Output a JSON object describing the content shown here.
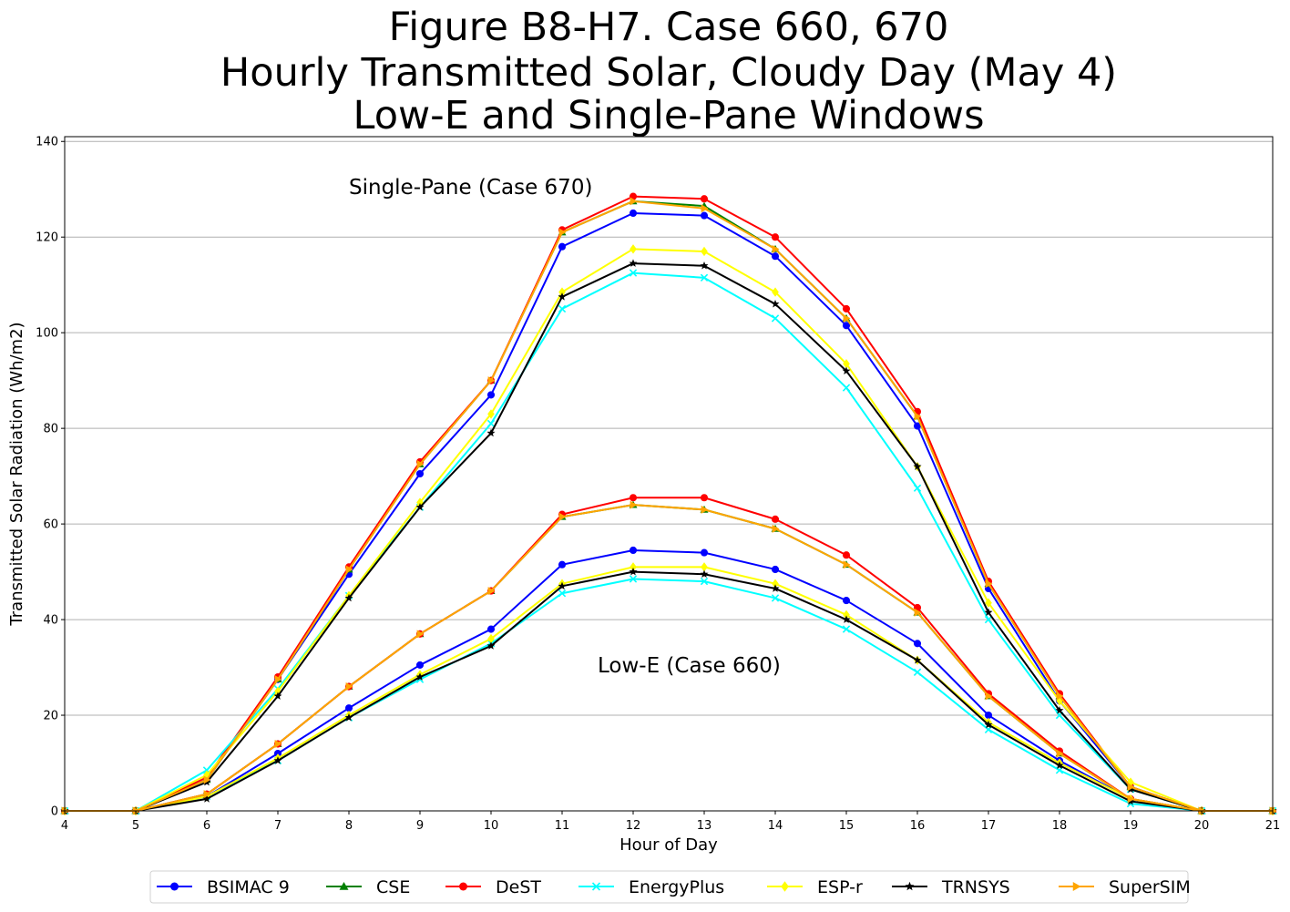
{
  "chart_data": {
    "type": "line",
    "title_lines": [
      "Figure B8-H7. Case 660, 670",
      "Hourly Transmitted Solar, Cloudy Day (May 4)",
      "Low-E and Single-Pane Windows"
    ],
    "xlabel": "Hour of Day",
    "ylabel": "Transmitted Solar Radiation (Wh/m2)",
    "x": [
      4,
      5,
      6,
      7,
      8,
      9,
      10,
      11,
      12,
      13,
      14,
      15,
      16,
      17,
      18,
      19,
      20,
      21
    ],
    "xlim": [
      4,
      21
    ],
    "ylim": [
      0,
      141
    ],
    "x_ticks": [
      4,
      5,
      6,
      7,
      8,
      9,
      10,
      11,
      12,
      13,
      14,
      15,
      16,
      17,
      18,
      19,
      20,
      21
    ],
    "y_ticks": [
      0,
      20,
      40,
      60,
      80,
      100,
      120,
      140
    ],
    "grid": "horizontal",
    "legend_position": "bottom",
    "annotations": [
      {
        "text": "Single-Pane (Case 670)",
        "x": 8.0,
        "y": 130.5
      },
      {
        "text": "Low-E (Case 660)",
        "x": 11.5,
        "y": 30.5
      }
    ],
    "series": [
      {
        "name": "BSIMAC 9",
        "color": "#0000ff",
        "marker": "circle",
        "single_pane": [
          0,
          0,
          6.5,
          27.5,
          49.5,
          70.5,
          87.0,
          118.0,
          125.0,
          124.5,
          116.0,
          101.5,
          80.5,
          46.5,
          23.0,
          5.0,
          0,
          0
        ],
        "low_e": [
          0,
          0,
          3.0,
          12.0,
          21.5,
          30.5,
          38.0,
          51.5,
          54.5,
          54.0,
          50.5,
          44.0,
          35.0,
          20.0,
          10.5,
          2.5,
          0,
          0
        ]
      },
      {
        "name": "CSE",
        "color": "#008000",
        "marker": "triangle",
        "single_pane": [
          0,
          0,
          6.5,
          27.5,
          50.5,
          72.5,
          90.0,
          121.0,
          127.5,
          126.5,
          117.5,
          103.0,
          82.5,
          47.5,
          24.0,
          5.0,
          0,
          0
        ],
        "low_e": [
          0,
          0,
          3.5,
          14.0,
          26.0,
          37.0,
          46.0,
          61.5,
          64.0,
          63.0,
          59.0,
          51.5,
          41.5,
          24.0,
          12.0,
          2.5,
          0,
          0
        ]
      },
      {
        "name": "DeST",
        "color": "#ff0000",
        "marker": "circle",
        "single_pane": [
          0,
          0,
          7.0,
          28.0,
          51.0,
          73.0,
          90.0,
          121.5,
          128.5,
          128.0,
          120.0,
          105.0,
          83.5,
          48.0,
          24.5,
          5.0,
          0,
          0
        ],
        "low_e": [
          0,
          0,
          3.5,
          14.0,
          26.0,
          37.0,
          46.0,
          62.0,
          65.5,
          65.5,
          61.0,
          53.5,
          42.5,
          24.5,
          12.5,
          2.5,
          0,
          0
        ]
      },
      {
        "name": "EnergyPlus",
        "color": "#00ffff",
        "marker": "x",
        "single_pane": [
          0,
          0,
          8.5,
          25.5,
          45.0,
          63.5,
          81.0,
          105.0,
          112.5,
          111.5,
          103.0,
          88.5,
          67.5,
          40.0,
          20.0,
          4.5,
          0,
          0
        ],
        "low_e": [
          0,
          0,
          3.0,
          10.5,
          19.5,
          27.5,
          35.0,
          45.5,
          48.5,
          48.0,
          44.5,
          38.0,
          29.0,
          17.0,
          8.5,
          1.5,
          0,
          0
        ]
      },
      {
        "name": "ESP-r",
        "color": "#ffff00",
        "marker": "diamond",
        "single_pane": [
          0,
          0,
          7.5,
          25.0,
          45.0,
          64.5,
          83.0,
          108.5,
          117.5,
          117.0,
          108.5,
          93.5,
          72.0,
          43.5,
          23.0,
          6.0,
          0,
          0
        ],
        "low_e": [
          0,
          0,
          3.0,
          11.0,
          20.0,
          28.5,
          36.0,
          47.5,
          51.0,
          51.0,
          47.5,
          41.0,
          31.5,
          18.5,
          10.0,
          2.5,
          0,
          0
        ]
      },
      {
        "name": "TRNSYS",
        "color": "#000000",
        "marker": "star",
        "single_pane": [
          0,
          0,
          6.0,
          24.0,
          44.5,
          63.5,
          79.0,
          107.5,
          114.5,
          114.0,
          106.0,
          92.0,
          72.0,
          41.5,
          21.0,
          4.5,
          0,
          0
        ],
        "low_e": [
          0,
          0,
          2.5,
          10.5,
          19.5,
          28.0,
          34.5,
          47.0,
          50.0,
          49.5,
          46.5,
          40.0,
          31.5,
          18.0,
          9.5,
          2.0,
          0,
          0
        ]
      },
      {
        "name": "SuperSIM",
        "color": "#ffa500",
        "marker": "triangle-right",
        "single_pane": [
          0,
          0,
          6.5,
          27.5,
          50.5,
          72.5,
          90.0,
          121.0,
          127.5,
          126.0,
          117.5,
          103.0,
          82.5,
          47.5,
          24.0,
          5.0,
          0,
          0
        ],
        "low_e": [
          0,
          0,
          3.5,
          14.0,
          26.0,
          37.0,
          46.0,
          61.5,
          64.0,
          63.0,
          59.0,
          51.5,
          41.5,
          24.0,
          12.0,
          2.5,
          0,
          0
        ]
      }
    ]
  }
}
